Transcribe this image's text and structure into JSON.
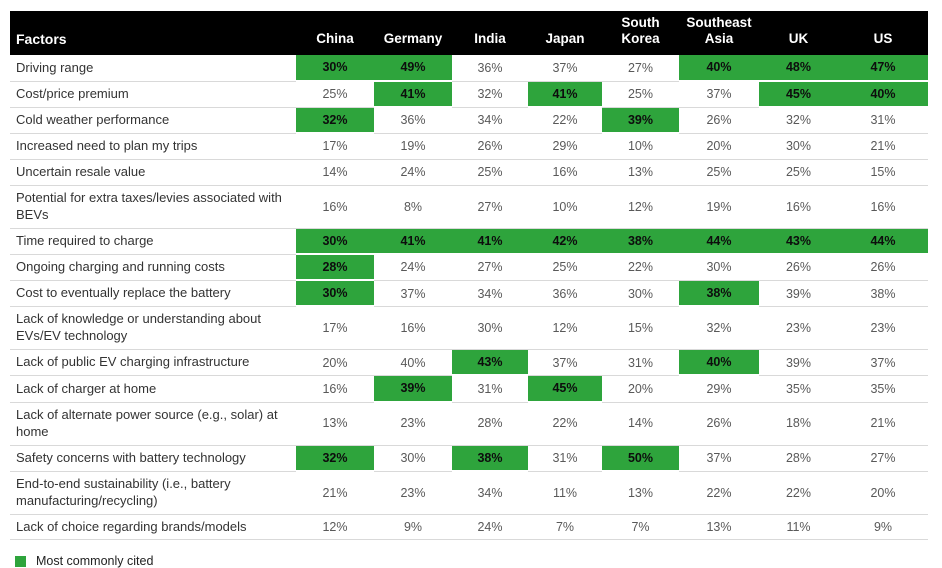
{
  "chart_data": {
    "type": "table",
    "factor_header": "Factors",
    "columns": [
      "China",
      "Germany",
      "India",
      "Japan",
      "South Korea",
      "Southeast Asia",
      "UK",
      "US"
    ],
    "value_format": "percent",
    "highlight_color": "#2EA43C",
    "highlight_meaning": "Most commonly cited",
    "rows": [
      {
        "factor": "Driving range",
        "values": [
          30,
          49,
          36,
          37,
          27,
          40,
          48,
          47
        ],
        "highlighted": [
          true,
          true,
          false,
          false,
          false,
          true,
          true,
          true
        ]
      },
      {
        "factor": "Cost/price premium",
        "values": [
          25,
          41,
          32,
          41,
          25,
          37,
          45,
          40
        ],
        "highlighted": [
          false,
          true,
          false,
          true,
          false,
          false,
          true,
          true
        ]
      },
      {
        "factor": "Cold weather performance",
        "values": [
          32,
          36,
          34,
          22,
          39,
          26,
          32,
          31
        ],
        "highlighted": [
          true,
          false,
          false,
          false,
          true,
          false,
          false,
          false
        ]
      },
      {
        "factor": "Increased need to plan my trips",
        "values": [
          17,
          19,
          26,
          29,
          10,
          20,
          30,
          21
        ],
        "highlighted": [
          false,
          false,
          false,
          false,
          false,
          false,
          false,
          false
        ]
      },
      {
        "factor": "Uncertain resale value",
        "values": [
          14,
          24,
          25,
          16,
          13,
          25,
          25,
          15
        ],
        "highlighted": [
          false,
          false,
          false,
          false,
          false,
          false,
          false,
          false
        ]
      },
      {
        "factor": "Potential for extra taxes/levies associated with BEVs",
        "values": [
          16,
          8,
          27,
          10,
          12,
          19,
          16,
          16
        ],
        "highlighted": [
          false,
          false,
          false,
          false,
          false,
          false,
          false,
          false
        ]
      },
      {
        "factor": "Time required to charge",
        "values": [
          30,
          41,
          41,
          42,
          38,
          44,
          43,
          44
        ],
        "highlighted": [
          true,
          true,
          true,
          true,
          true,
          true,
          true,
          true
        ]
      },
      {
        "factor": "Ongoing charging and running costs",
        "values": [
          28,
          24,
          27,
          25,
          22,
          30,
          26,
          26
        ],
        "highlighted": [
          true,
          false,
          false,
          false,
          false,
          false,
          false,
          false
        ]
      },
      {
        "factor": "Cost to eventually replace the battery",
        "values": [
          30,
          37,
          34,
          36,
          30,
          38,
          39,
          38
        ],
        "highlighted": [
          true,
          false,
          false,
          false,
          false,
          true,
          false,
          false
        ]
      },
      {
        "factor": "Lack of knowledge or understanding about EVs/EV technology",
        "values": [
          17,
          16,
          30,
          12,
          15,
          32,
          23,
          23
        ],
        "highlighted": [
          false,
          false,
          false,
          false,
          false,
          false,
          false,
          false
        ]
      },
      {
        "factor": "Lack of public EV charging infrastructure",
        "values": [
          20,
          40,
          43,
          37,
          31,
          40,
          39,
          37
        ],
        "highlighted": [
          false,
          false,
          true,
          false,
          false,
          true,
          false,
          false
        ]
      },
      {
        "factor": "Lack of charger at home",
        "values": [
          16,
          39,
          31,
          45,
          20,
          29,
          35,
          35
        ],
        "highlighted": [
          false,
          true,
          false,
          true,
          false,
          false,
          false,
          false
        ]
      },
      {
        "factor": "Lack of alternate power source (e.g., solar) at home",
        "values": [
          13,
          23,
          28,
          22,
          14,
          26,
          18,
          21
        ],
        "highlighted": [
          false,
          false,
          false,
          false,
          false,
          false,
          false,
          false
        ]
      },
      {
        "factor": "Safety concerns with battery technology",
        "values": [
          32,
          30,
          38,
          31,
          50,
          37,
          28,
          27
        ],
        "highlighted": [
          true,
          false,
          true,
          false,
          true,
          false,
          false,
          false
        ]
      },
      {
        "factor": "End-to-end sustainability (i.e., battery manufacturing/recycling)",
        "values": [
          21,
          23,
          34,
          11,
          13,
          22,
          22,
          20
        ],
        "highlighted": [
          false,
          false,
          false,
          false,
          false,
          false,
          false,
          false
        ]
      },
      {
        "factor": "Lack of choice regarding brands/models",
        "values": [
          12,
          9,
          24,
          7,
          7,
          13,
          11,
          9
        ],
        "highlighted": [
          false,
          false,
          false,
          false,
          false,
          false,
          false,
          false
        ]
      }
    ]
  },
  "legend": {
    "label": "Most commonly cited"
  }
}
